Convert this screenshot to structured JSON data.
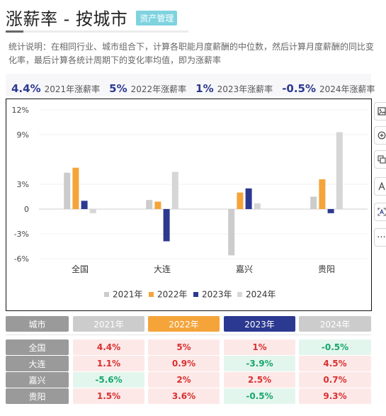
{
  "header": {
    "title": "涨薪率 - 按城市",
    "tag": "资产管理",
    "description": "统计说明：在相同行业、城市组合下，计算各职能月度薪酬的中位数，然后计算月度薪酬的同比变化率，最后计算各统计周期下的变化率均值，即为涨薪率"
  },
  "summary": [
    {
      "value": "4.4%",
      "label": "2021年涨薪率"
    },
    {
      "value": "5%",
      "label": "2022年涨薪率"
    },
    {
      "value": "1%",
      "label": "2023年涨薪率"
    },
    {
      "value": "-0.5%",
      "label": "2024年涨薪率"
    }
  ],
  "colors": {
    "y2021": "#cccccc",
    "y2022": "#f5a43a",
    "y2023": "#2b3990",
    "y2024": "#d6d6d6",
    "positive": "#d93030",
    "negative": "#19a56b"
  },
  "toolbar_icons": [
    "image-icon",
    "zoom-in-icon",
    "copy-icon",
    "text-icon",
    "scan-text-icon",
    "more-icon"
  ],
  "toolbar_more": "···",
  "chart_data": {
    "type": "bar",
    "categories": [
      "全国",
      "大连",
      "嘉兴",
      "贵阳"
    ],
    "series": [
      {
        "name": "2021年",
        "values": [
          4.4,
          1.1,
          -5.6,
          1.5
        ]
      },
      {
        "name": "2022年",
        "values": [
          5,
          0.9,
          2,
          3.6
        ]
      },
      {
        "name": "2023年",
        "values": [
          1,
          -3.9,
          2.5,
          -0.5
        ]
      },
      {
        "name": "2024年",
        "values": [
          -0.5,
          4.5,
          0.7,
          9.3
        ]
      }
    ],
    "ylim": [
      -6,
      12
    ],
    "yticks": [
      12,
      9,
      3,
      0,
      -3,
      -6
    ],
    "ytick_labels": [
      "12%",
      "9%",
      "3%",
      "0",
      "-3%",
      "-6%"
    ],
    "legend": "bottom"
  },
  "table": {
    "headers": [
      "城市",
      "2021年",
      "2022年",
      "2023年",
      "2024年"
    ],
    "rows": [
      {
        "city": "全国",
        "values": [
          "4.4%",
          "5%",
          "1%",
          "-0.5%"
        ]
      },
      {
        "city": "大连",
        "values": [
          "1.1%",
          "0.9%",
          "-3.9%",
          "4.5%"
        ]
      },
      {
        "city": "嘉兴",
        "values": [
          "-5.6%",
          "2%",
          "2.5%",
          "0.7%"
        ]
      },
      {
        "city": "贵阳",
        "values": [
          "1.5%",
          "3.6%",
          "-0.5%",
          "9.3%"
        ]
      }
    ]
  }
}
